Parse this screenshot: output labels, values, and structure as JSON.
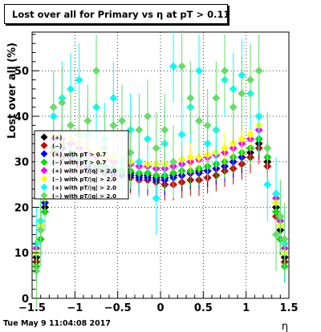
{
  "title": "Lost over all for Primary vs   η at pT > 0.11",
  "footer_timestamp": "Tue May  9 11:04:08 2017",
  "chart_data": {
    "type": "scatter",
    "xlabel": "η",
    "ylabel": "Lost over all (%)",
    "xlim": [
      -1.5,
      1.5
    ],
    "ylim": [
      0,
      58.5
    ],
    "x_ticks": [
      "−1.5",
      "−1",
      "−0.5",
      "0",
      "0.5",
      "1",
      "1.5"
    ],
    "y_ticks": [
      "0",
      "10",
      "20",
      "30",
      "40",
      "50"
    ],
    "grid": true,
    "legend_position": "left-middle",
    "series": [
      {
        "name": "(+)",
        "color": "#000000",
        "x": [
          -1.45,
          -1.4,
          -1.35,
          -1.25,
          -1.15,
          -1.05,
          -0.95,
          -0.85,
          -0.75,
          -0.65,
          -0.55,
          -0.45,
          -0.35,
          -0.25,
          -0.15,
          -0.05,
          0.05,
          0.15,
          0.25,
          0.35,
          0.45,
          0.55,
          0.65,
          0.75,
          0.85,
          0.95,
          1.05,
          1.15,
          1.25,
          1.35,
          1.4,
          1.45
        ],
        "y": [
          9,
          15,
          20,
          32,
          33,
          32,
          31,
          30,
          29,
          29,
          28,
          28,
          27.5,
          27,
          27,
          26.5,
          26.5,
          27,
          27,
          27.5,
          28,
          28,
          28.5,
          29,
          30,
          31,
          32,
          34,
          30,
          20,
          15,
          9
        ]
      },
      {
        "name": "(−)",
        "color": "#cc0000",
        "x": [
          -1.45,
          -1.4,
          -1.35,
          -1.25,
          -1.15,
          -1.05,
          -0.95,
          -0.85,
          -0.75,
          -0.65,
          -0.55,
          -0.45,
          -0.35,
          -0.25,
          -0.15,
          -0.05,
          0.05,
          0.15,
          0.25,
          0.35,
          0.45,
          0.55,
          0.65,
          0.75,
          0.85,
          0.95,
          1.05,
          1.15,
          1.25,
          1.35,
          1.4,
          1.45
        ],
        "y": [
          8,
          13,
          19,
          32,
          31,
          30,
          29,
          28,
          28,
          27.5,
          27,
          27,
          26.5,
          26,
          26,
          25.5,
          25,
          25,
          25.5,
          26,
          26,
          26.5,
          27,
          28,
          28.5,
          29.5,
          31,
          33,
          29,
          18,
          13,
          8
        ]
      },
      {
        "name": "(+) with pT > 0.7",
        "color": "#0000ff",
        "x": [
          -1.45,
          -1.4,
          -1.35,
          -1.25,
          -1.15,
          -1.05,
          -0.95,
          -0.85,
          -0.75,
          -0.65,
          -0.55,
          -0.45,
          -0.35,
          -0.25,
          -0.15,
          -0.05,
          0.05,
          0.15,
          0.25,
          0.35,
          0.45,
          0.55,
          0.65,
          0.75,
          0.85,
          0.95,
          1.05,
          1.15,
          1.25,
          1.35,
          1.4,
          1.45
        ],
        "y": [
          10,
          16,
          21,
          33,
          33,
          31,
          30,
          29,
          28.5,
          28,
          27.5,
          27,
          27,
          26.5,
          26.5,
          26,
          26,
          26.5,
          27,
          27.5,
          27.5,
          28,
          28.5,
          29,
          30,
          31,
          33,
          35,
          31,
          21,
          16,
          10
        ]
      },
      {
        "name": "(−) with pT > 0.7",
        "color": "#00dd00",
        "x": [
          -1.45,
          -1.4,
          -1.35,
          -1.25,
          -1.15,
          -1.05,
          -0.95,
          -0.85,
          -0.75,
          -0.65,
          -0.55,
          -0.45,
          -0.35,
          -0.25,
          -0.15,
          -0.05,
          0.05,
          0.15,
          0.25,
          0.35,
          0.45,
          0.55,
          0.65,
          0.75,
          0.85,
          0.95,
          1.05,
          1.15,
          1.25,
          1.35,
          1.4,
          1.45
        ],
        "y": [
          7,
          13,
          19,
          33,
          34,
          32,
          31,
          30,
          29,
          29,
          28.5,
          28,
          28,
          27.5,
          27.5,
          27,
          27,
          27.5,
          28,
          28,
          28.5,
          29,
          29.5,
          30,
          31,
          32,
          33,
          35,
          31,
          19,
          13,
          7
        ]
      },
      {
        "name": "(+) with pT/|q| > 2.0",
        "color": "#ff00ff",
        "x": [
          -1.45,
          -1.4,
          -1.35,
          -1.25,
          -1.15,
          -1.05,
          -0.95,
          -0.85,
          -0.75,
          -0.65,
          -0.55,
          -0.45,
          -0.35,
          -0.25,
          -0.15,
          -0.05,
          0.05,
          0.15,
          0.25,
          0.35,
          0.45,
          0.55,
          0.65,
          0.75,
          0.85,
          0.95,
          1.05,
          1.15,
          1.25,
          1.35,
          1.4,
          1.45
        ],
        "y": [
          11,
          17,
          22,
          35,
          35,
          34,
          33,
          32,
          31,
          30.5,
          30,
          30,
          29.5,
          29,
          29,
          28.5,
          28.5,
          29,
          29.5,
          30,
          30.5,
          31,
          31.5,
          32,
          33,
          34,
          35,
          37,
          33,
          22,
          17,
          11
        ]
      },
      {
        "name": "(−) with pT/|q| > 2.0",
        "color": "#ffff00",
        "x": [
          -1.45,
          -1.4,
          -1.35,
          -1.25,
          -1.15,
          -1.05,
          -0.95,
          -0.85,
          -0.75,
          -0.65,
          -0.55,
          -0.45,
          -0.35,
          -0.25,
          -0.15,
          -0.05,
          0.05,
          0.15,
          0.25,
          0.35,
          0.45,
          0.55,
          0.65,
          0.75,
          0.85,
          0.95,
          1.05,
          1.15,
          1.25,
          1.35,
          1.4,
          1.45
        ],
        "y": [
          10,
          16,
          22,
          36,
          36,
          35,
          34,
          33,
          32,
          31,
          31,
          30.5,
          30,
          30,
          29.5,
          29.5,
          29.5,
          30,
          30.5,
          31,
          31,
          31.5,
          32,
          33,
          34,
          35,
          36,
          38,
          33,
          21,
          16,
          10
        ]
      },
      {
        "name": "(+) with pT/|q| > 2.0",
        "color": "#00ffff",
        "x": [
          -1.45,
          -1.4,
          -1.35,
          -1.25,
          -1.15,
          -1.05,
          -0.95,
          -0.85,
          -0.75,
          -0.65,
          -0.55,
          -0.45,
          -0.35,
          -0.25,
          -0.15,
          -0.05,
          0.05,
          0.15,
          0.25,
          0.35,
          0.45,
          0.55,
          0.65,
          0.75,
          0.85,
          0.95,
          1.05,
          1.15,
          1.25,
          1.35,
          1.4,
          1.45
        ],
        "y": [
          12,
          17,
          23,
          40,
          44,
          46,
          48,
          36,
          42,
          35,
          44,
          30,
          37,
          30,
          35,
          22,
          34,
          51,
          36,
          42,
          50,
          34,
          37,
          48,
          46,
          49,
          45,
          40,
          25,
          23,
          18,
          12
        ]
      },
      {
        "name": "(−) with pT/|q| > 2.0",
        "color": "#66dd66",
        "x": [
          -1.45,
          -1.4,
          -1.35,
          -1.25,
          -1.15,
          -1.05,
          -0.95,
          -0.85,
          -0.75,
          -0.65,
          -0.55,
          -0.45,
          -0.35,
          -0.25,
          -0.15,
          -0.05,
          0.05,
          0.15,
          0.25,
          0.35,
          0.45,
          0.55,
          0.65,
          0.75,
          0.85,
          0.95,
          1.05,
          1.15,
          1.25,
          1.35,
          1.4,
          1.45
        ],
        "y": [
          6,
          15,
          23,
          42,
          43,
          38,
          36,
          39,
          50,
          33,
          38,
          39,
          32,
          37,
          40,
          33,
          37,
          30,
          51,
          44,
          39,
          38,
          44,
          50,
          42,
          45,
          48,
          50,
          33,
          14,
          18,
          13
        ]
      }
    ]
  }
}
